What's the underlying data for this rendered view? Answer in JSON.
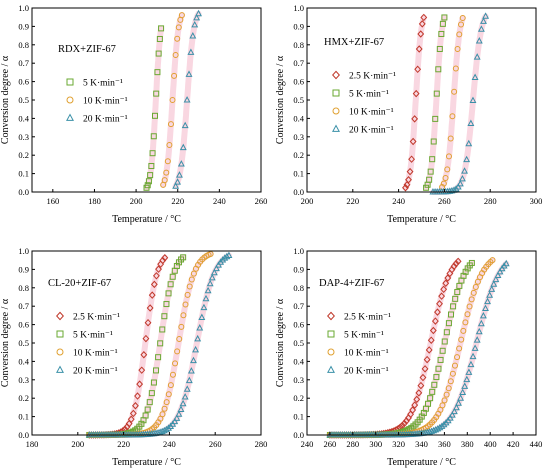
{
  "colors": {
    "2.5 K·min⁻¹": "#c0392b",
    "5 K·min⁻¹": "#6aa832",
    "10 K·min⁻¹": "#e0a030",
    "20 K·min⁻¹": "#3a90a8",
    "band": "#f4b6c8"
  },
  "chart_data": [
    {
      "type": "scatter",
      "panel_label": "RDX+ZIF-67",
      "xlabel": "Temperature / °C",
      "ylabel": "Conversion degree / α",
      "xlim": [
        150,
        260
      ],
      "xticks": [
        160,
        180,
        200,
        220,
        240,
        260
      ],
      "ylim": [
        0,
        1.0
      ],
      "yticks": [
        0.0,
        0.1,
        0.2,
        0.3,
        0.4,
        0.5,
        0.6,
        0.7,
        0.8,
        0.9,
        1.0
      ],
      "legend": "middle-left",
      "series": [
        {
          "name": "5 K·min⁻¹",
          "marker": "square",
          "x_start": 205,
          "x_end": 212,
          "t_half": 209.5,
          "width": 1.2
        },
        {
          "name": "10 K·min⁻¹",
          "marker": "circle",
          "x_start": 213,
          "x_end": 222,
          "t_half": 217.5,
          "width": 1.4
        },
        {
          "name": "20 K·min⁻¹",
          "marker": "triangle",
          "x_start": 219,
          "x_end": 230,
          "t_half": 224.5,
          "width": 1.6
        }
      ]
    },
    {
      "type": "scatter",
      "panel_label": "HMX+ZIF-67",
      "xlabel": "Temperature / °C",
      "ylabel": "Conversion degree / α",
      "xlim": [
        200,
        300
      ],
      "xticks": [
        200,
        220,
        240,
        260,
        280,
        300
      ],
      "ylim": [
        0,
        1.0
      ],
      "yticks": [
        0.0,
        0.1,
        0.2,
        0.3,
        0.4,
        0.5,
        0.6,
        0.7,
        0.8,
        0.9,
        1.0
      ],
      "legend": "middle-left",
      "series": [
        {
          "name": "2.5 K·min⁻¹",
          "marker": "diamond",
          "x_start": 243,
          "x_end": 251,
          "t_half": 247.5,
          "width": 1.2
        },
        {
          "name": "5 K·min⁻¹",
          "marker": "square",
          "x_start": 252,
          "x_end": 260,
          "t_half": 256.5,
          "width": 1.2
        },
        {
          "name": "10 K·min⁻¹",
          "marker": "circle",
          "x_start": 259,
          "x_end": 268,
          "t_half": 264.0,
          "width": 1.4
        },
        {
          "name": "20 K·min⁻¹",
          "marker": "triangle",
          "x_start": 255,
          "x_end": 278,
          "t_half": 272.5,
          "width": 1.8
        }
      ]
    },
    {
      "type": "scatter",
      "panel_label": "CL-20+ZIF-67",
      "xlabel": "Temperature / °C",
      "ylabel": "Conversion degree / α",
      "xlim": [
        180,
        280
      ],
      "xticks": [
        180,
        200,
        220,
        240,
        260,
        280
      ],
      "ylim": [
        0,
        1.0
      ],
      "yticks": [
        0.0,
        0.1,
        0.2,
        0.3,
        0.4,
        0.5,
        0.6,
        0.7,
        0.8,
        0.9,
        1.0
      ],
      "legend": "middle-left",
      "series": [
        {
          "name": "2.5 K·min⁻¹",
          "marker": "diamond",
          "x_start": 205,
          "x_end": 238,
          "t_half": 229.5,
          "width": 2.6
        },
        {
          "name": "5 K·min⁻¹",
          "marker": "square",
          "x_start": 205,
          "x_end": 246,
          "t_half": 236.0,
          "width": 3.0
        },
        {
          "name": "10 K·min⁻¹",
          "marker": "circle",
          "x_start": 205,
          "x_end": 258,
          "t_half": 244.0,
          "width": 3.4
        },
        {
          "name": "20 K·min⁻¹",
          "marker": "triangle",
          "x_start": 205,
          "x_end": 266,
          "t_half": 252.0,
          "width": 3.8
        }
      ]
    },
    {
      "type": "scatter",
      "panel_label": "DAP-4+ZIF-67",
      "xlabel": "Temperature / °C",
      "ylabel": "Conversion degree / α",
      "xlim": [
        240,
        440
      ],
      "xticks": [
        240,
        260,
        280,
        300,
        320,
        340,
        360,
        380,
        400,
        420,
        440
      ],
      "ylim": [
        0,
        1.0
      ],
      "yticks": [
        0.0,
        0.1,
        0.2,
        0.3,
        0.4,
        0.5,
        0.6,
        0.7,
        0.8,
        0.9,
        1.0
      ],
      "legend": "middle-left",
      "series": [
        {
          "name": "2.5 K·min⁻¹",
          "marker": "diamond",
          "x_start": 260,
          "x_end": 372,
          "t_half": 348,
          "width": 8.5
        },
        {
          "name": "5 K·min⁻¹",
          "marker": "square",
          "x_start": 260,
          "x_end": 384,
          "t_half": 360,
          "width": 9.0
        },
        {
          "name": "10 K·min⁻¹",
          "marker": "circle",
          "x_start": 260,
          "x_end": 402,
          "t_half": 374,
          "width": 9.5
        },
        {
          "name": "20 K·min⁻¹",
          "marker": "triangle",
          "x_start": 260,
          "x_end": 414,
          "t_half": 388,
          "width": 10.0
        }
      ]
    }
  ]
}
